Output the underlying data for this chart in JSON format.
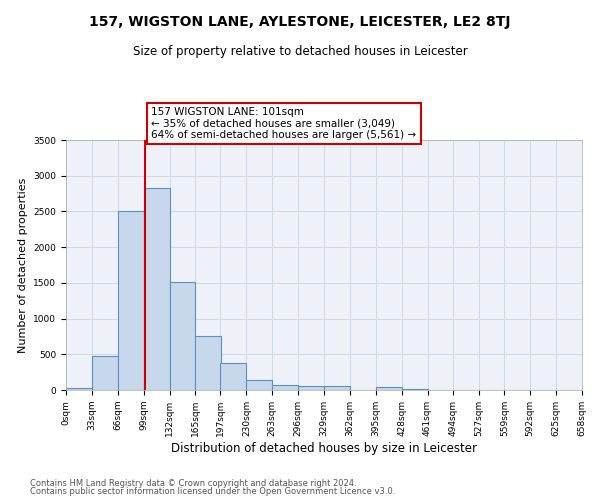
{
  "title": "157, WIGSTON LANE, AYLESTONE, LEICESTER, LE2 8TJ",
  "subtitle": "Size of property relative to detached houses in Leicester",
  "xlabel": "Distribution of detached houses by size in Leicester",
  "ylabel": "Number of detached properties",
  "bar_left_edges": [
    0,
    33,
    66,
    99,
    132,
    165,
    197,
    230,
    263,
    296,
    329,
    362,
    395,
    428,
    461,
    494,
    527,
    559,
    592,
    625
  ],
  "bar_heights": [
    25,
    470,
    2500,
    2830,
    1510,
    750,
    385,
    140,
    75,
    50,
    50,
    0,
    45,
    20,
    0,
    0,
    0,
    0,
    0,
    0
  ],
  "bin_width": 33,
  "bar_color": "#c8d8ec",
  "bar_edge_color": "#5a8fc0",
  "property_size": 101,
  "vline_color": "#cc0000",
  "annotation_text": "157 WIGSTON LANE: 101sqm\n← 35% of detached houses are smaller (3,049)\n64% of semi-detached houses are larger (5,561) →",
  "annotation_box_color": "#cc0000",
  "ylim": [
    0,
    3500
  ],
  "xlim": [
    0,
    658
  ],
  "xtick_labels": [
    "0sqm",
    "33sqm",
    "66sqm",
    "99sqm",
    "132sqm",
    "165sqm",
    "197sqm",
    "230sqm",
    "263sqm",
    "296sqm",
    "329sqm",
    "362sqm",
    "395sqm",
    "428sqm",
    "461sqm",
    "494sqm",
    "527sqm",
    "559sqm",
    "592sqm",
    "625sqm",
    "658sqm"
  ],
  "xtick_positions": [
    0,
    33,
    66,
    99,
    132,
    165,
    197,
    230,
    263,
    296,
    329,
    362,
    395,
    428,
    461,
    494,
    527,
    559,
    592,
    625,
    658
  ],
  "grid_color": "#d0d8e8",
  "background_color": "#eef2f8",
  "footer_line1": "Contains HM Land Registry data © Crown copyright and database right 2024.",
  "footer_line2": "Contains public sector information licensed under the Open Government Licence v3.0.",
  "title_fontsize": 10,
  "subtitle_fontsize": 8.5,
  "xlabel_fontsize": 8.5,
  "ylabel_fontsize": 8,
  "tick_fontsize": 6.5,
  "footer_fontsize": 6
}
